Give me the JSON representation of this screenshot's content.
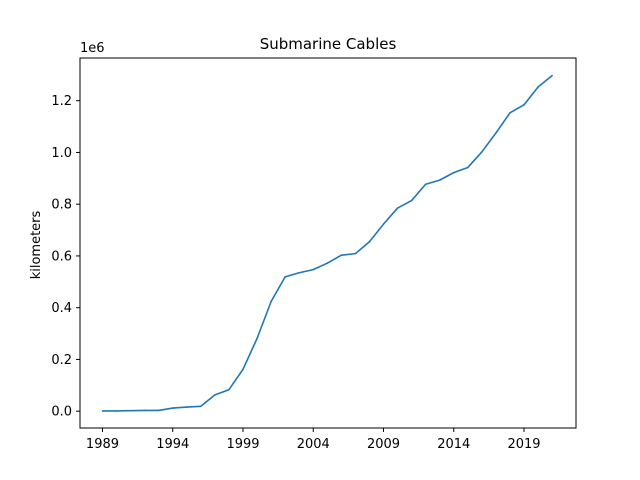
{
  "chart_data": {
    "type": "line",
    "title": "Submarine Cables",
    "xlabel": "",
    "ylabel": "kilometers",
    "y_offset_label": "1e6",
    "xlim": [
      1987.4,
      2022.7
    ],
    "ylim": [
      -0.065,
      1.365
    ],
    "x_ticks": [
      1989,
      1994,
      1999,
      2004,
      2009,
      2014,
      2019
    ],
    "x_tick_labels": [
      "1989",
      "1994",
      "1999",
      "2004",
      "2009",
      "2014",
      "2019"
    ],
    "y_ticks": [
      0.0,
      0.2,
      0.4,
      0.6,
      0.8,
      1.0,
      1.2
    ],
    "y_tick_labels": [
      "0.0",
      "0.2",
      "0.4",
      "0.6",
      "0.8",
      "1.0",
      "1.2"
    ],
    "grid": false,
    "series": [
      {
        "color": "#1f77b4",
        "x": [
          1989,
          1990,
          1991,
          1992,
          1993,
          1994,
          1995,
          1996,
          1997,
          1998,
          1999,
          2000,
          2001,
          2002,
          2003,
          2004,
          2005,
          2006,
          2007,
          2008,
          2009,
          2010,
          2011,
          2012,
          2013,
          2014,
          2015,
          2016,
          2017,
          2018,
          2019,
          2020,
          2021
        ],
        "y": [
          0.001,
          0.001,
          0.002,
          0.003,
          0.003,
          0.012,
          0.016,
          0.019,
          0.063,
          0.083,
          0.162,
          0.281,
          0.424,
          0.519,
          0.535,
          0.547,
          0.572,
          0.603,
          0.609,
          0.655,
          0.723,
          0.785,
          0.814,
          0.877,
          0.893,
          0.922,
          0.942,
          1.002,
          1.075,
          1.153,
          1.184,
          1.253,
          1.297
        ]
      }
    ]
  }
}
